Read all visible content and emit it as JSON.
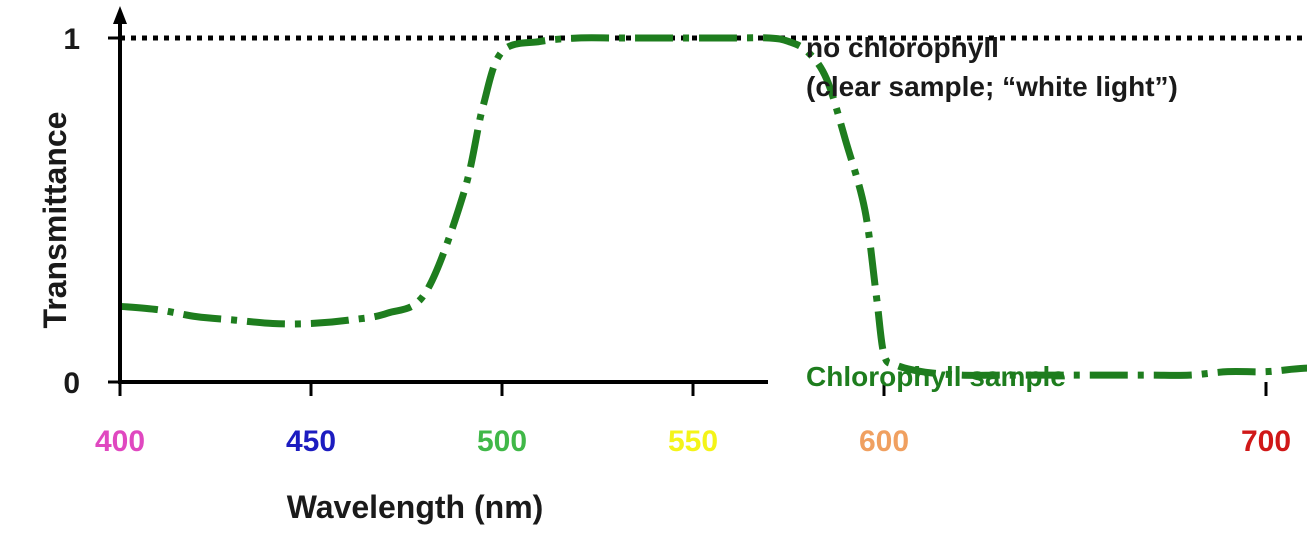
{
  "chart_data": {
    "type": "line",
    "title": "",
    "xlabel": "Wavelength (nm)",
    "ylabel": "Transmittance",
    "xlim": [
      400,
      745
    ],
    "ylim": [
      0,
      1
    ],
    "grid": false,
    "x_ticks": [
      {
        "value": 400,
        "label": "400",
        "color": "#e048c0"
      },
      {
        "value": 450,
        "label": "450",
        "color": "#1c1cc0"
      },
      {
        "value": 500,
        "label": "500",
        "color": "#40b848"
      },
      {
        "value": 550,
        "label": "550",
        "color": "#f4f418"
      },
      {
        "value": 600,
        "label": "600",
        "color": "#f0a060"
      },
      {
        "value": 700,
        "label": "700",
        "color": "#d01818"
      }
    ],
    "y_ticks": [
      {
        "value": 0,
        "label": "0"
      },
      {
        "value": 1,
        "label": "1"
      }
    ],
    "series": [
      {
        "key": "reference",
        "style": "dotted",
        "color": "#000000",
        "x": [
          400,
          745
        ],
        "y": [
          1.0,
          1.0
        ]
      },
      {
        "key": "sample",
        "style": "dash-dot",
        "color": "#1e7d1e",
        "x": [
          400,
          410,
          420,
          430,
          440,
          450,
          460,
          470,
          480,
          490,
          495,
          500,
          510,
          520,
          530,
          540,
          550,
          560,
          570,
          575,
          580,
          585,
          590,
          595,
          598,
          600,
          603,
          610,
          620,
          630,
          640,
          650,
          660,
          670,
          680,
          690,
          700,
          710,
          720,
          730
        ],
        "y": [
          0.22,
          0.21,
          0.19,
          0.18,
          0.17,
          0.17,
          0.18,
          0.2,
          0.26,
          0.55,
          0.8,
          0.96,
          0.99,
          1.0,
          1.0,
          1.0,
          1.0,
          1.0,
          1.0,
          0.99,
          0.96,
          0.88,
          0.7,
          0.5,
          0.25,
          0.08,
          0.05,
          0.03,
          0.02,
          0.02,
          0.02,
          0.02,
          0.02,
          0.02,
          0.02,
          0.03,
          0.03,
          0.04,
          0.04,
          0.04
        ]
      }
    ],
    "annotations": [
      {
        "key": "ref_line1",
        "text": "no chlorophyll",
        "color": "#1a1a1a"
      },
      {
        "key": "ref_line2",
        "text": "(clear sample; “white light”)",
        "color": "#1a1a1a"
      },
      {
        "key": "sample_label",
        "text": "Chlorophyll sample",
        "color": "#1e7d1e"
      }
    ]
  }
}
